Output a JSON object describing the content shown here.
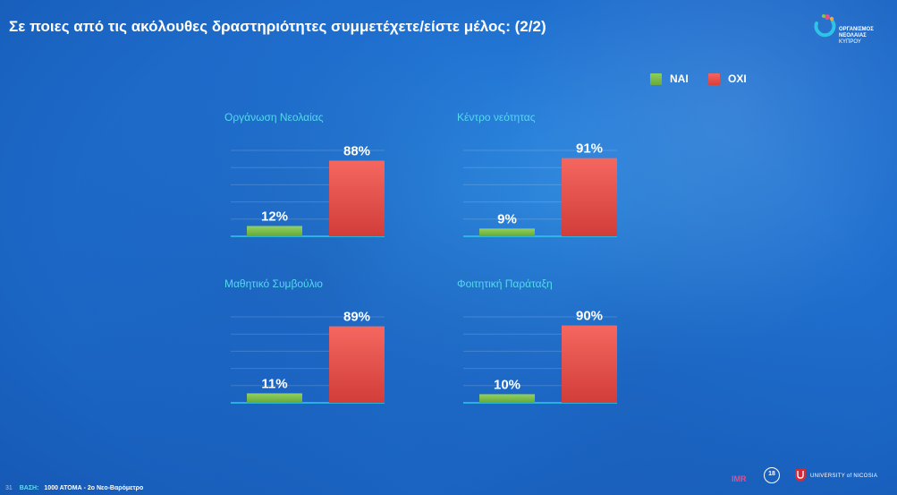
{
  "header": {
    "title": "Σε ποιες από τις ακόλουθες δραστηριότητες συμμετέχετε/είστε μέλος: (2/2)"
  },
  "logo": {
    "line1": "ΟΡΓΑΝΙΣΜΟΣ",
    "line2": "ΝΕΟΛΑΙΑΣ",
    "line3": "ΚΥΠΡΟΥ"
  },
  "legend": {
    "items": [
      {
        "label": "ΝΑΙ",
        "color": "#7fbf4d"
      },
      {
        "label": "ΟΧΙ",
        "color": "#e8504a"
      }
    ]
  },
  "footer": {
    "page_number": "31",
    "base_label": "ΒΑΣΗ:",
    "base_text": "1000 ΑΤΟΜΑ - 2ο Νεο-Βαρόμετρο",
    "imr_label": "IMR",
    "seal_label": "18",
    "university": "UNIVERSITY of NICOSIA"
  },
  "chart_data": [
    {
      "type": "bar",
      "title": "Οργάνωση Νεολαίας",
      "categories": [
        "ΝΑΙ",
        "ΟΧΙ"
      ],
      "values": [
        12,
        88
      ],
      "labels": [
        "12%",
        "88%"
      ],
      "colors": [
        "#7fbf4d",
        "#e8504a"
      ],
      "ylim": [
        0,
        100
      ]
    },
    {
      "type": "bar",
      "title": "Κέντρο νεότητας",
      "categories": [
        "ΝΑΙ",
        "ΟΧΙ"
      ],
      "values": [
        9,
        91
      ],
      "labels": [
        "9%",
        "91%"
      ],
      "colors": [
        "#7fbf4d",
        "#e8504a"
      ],
      "ylim": [
        0,
        100
      ]
    },
    {
      "type": "bar",
      "title": "Μαθητικό Συμβούλιο",
      "categories": [
        "ΝΑΙ",
        "ΟΧΙ"
      ],
      "values": [
        11,
        89
      ],
      "labels": [
        "11%",
        "89%"
      ],
      "colors": [
        "#7fbf4d",
        "#e8504a"
      ],
      "ylim": [
        0,
        100
      ]
    },
    {
      "type": "bar",
      "title": "Φοιτητική Παράταξη",
      "categories": [
        "ΝΑΙ",
        "ΟΧΙ"
      ],
      "values": [
        10,
        90
      ],
      "labels": [
        "10%",
        "90%"
      ],
      "colors": [
        "#7fbf4d",
        "#e8504a"
      ],
      "ylim": [
        0,
        100
      ]
    }
  ]
}
